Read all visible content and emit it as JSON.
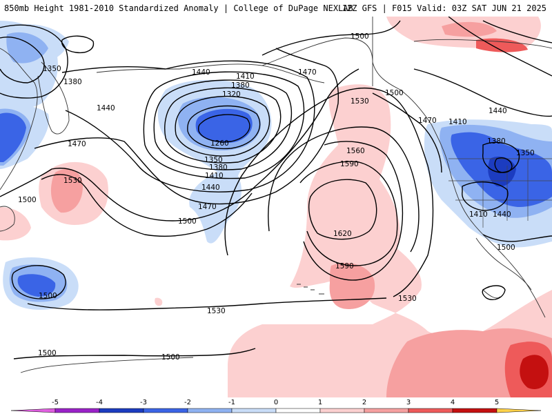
{
  "header": {
    "title_left": "850mb Height 1981-2010 Standardized Anomaly | College of DuPage NEXLAB",
    "title_right": "12Z GFS | F015 Valid: 03Z SAT JUN 21 2025"
  },
  "colorbar": {
    "ticks": [
      "-5",
      "-4",
      "-3",
      "-2",
      "-1",
      "0",
      "1",
      "2",
      "3",
      "4",
      "5"
    ],
    "colors": [
      "#e060e0",
      "#9a22c8",
      "#1c3cc0",
      "#3a64e6",
      "#8fb2f2",
      "#c9ddf8",
      "#ffffff",
      "#fcd0d0",
      "#f6a0a0",
      "#ee5a5a",
      "#c41010",
      "#f0a000",
      "#ffd24a"
    ]
  },
  "contour_labels": [
    "1350",
    "1380",
    "1440",
    "1470",
    "1500",
    "1530",
    "1320",
    "1380",
    "1410",
    "1440",
    "1470",
    "1260",
    "1350",
    "1380",
    "1410",
    "1440",
    "1470",
    "1500",
    "1500",
    "1530",
    "1560",
    "1590",
    "1620",
    "1590",
    "1530",
    "1530",
    "1500",
    "1500",
    "1500",
    "1440",
    "1410",
    "1380",
    "1350",
    "1410",
    "1440",
    "1500",
    "1470",
    "1500"
  ],
  "legend": {
    "anomaly_colors": {
      "neg3": "#3a64e6",
      "neg2": "#8fb2f2",
      "neg1": "#c9ddf8",
      "pos1": "#fcd0d0",
      "pos2": "#f6a0a0",
      "pos3": "#ee5a5a",
      "pos4": "#c41010"
    }
  }
}
